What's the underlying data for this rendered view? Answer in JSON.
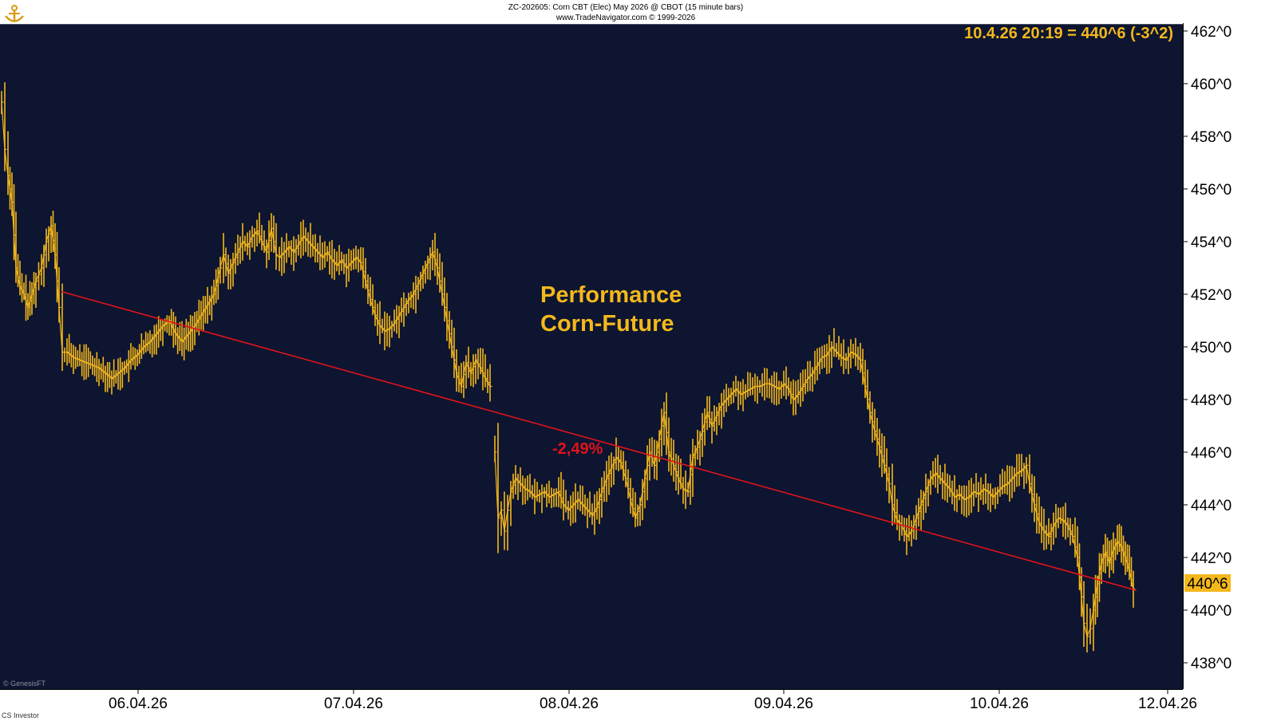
{
  "header": {
    "line1": "ZC-202605:  Corn CBT (Elec) May 2026 @ CBOT  (15 minute bars)",
    "line2": "www.TradeNavigator.com © 1999-2026"
  },
  "readout": "10.4.26 20:19 = 440^6 (-3^2)",
  "last_price_label": "440^6",
  "watermark": "© GenesisFT",
  "footer_left": "CS Investor",
  "annotation": {
    "line1": "Performance",
    "line2": "Corn-Future"
  },
  "trend_label": "-2,49%",
  "colors": {
    "background": "#0d1530",
    "bars": "#f4b81c",
    "trendline": "#e3121b",
    "annotation": "#f4b81c",
    "trend_label": "#e3121b",
    "price_box": "#f4b81c"
  },
  "chart_data": {
    "type": "line",
    "title": "Performance Corn-Future",
    "xlabel": "",
    "ylabel": "",
    "ylim": [
      437,
      462.3
    ],
    "xlim": [
      0,
      1482
    ],
    "y_tick_values": [
      438,
      440,
      442,
      444,
      446,
      448,
      450,
      452,
      454,
      456,
      458,
      460,
      462
    ],
    "y_tick_labels": [
      "438^0",
      "440^0",
      "442^0",
      "444^0",
      "446^0",
      "448^0",
      "450^0",
      "452^0",
      "454^0",
      "456^0",
      "458^0",
      "460^0",
      "462^0"
    ],
    "x_tick_positions": [
      173,
      443,
      713,
      982,
      1252,
      1463
    ],
    "x_tick_labels": [
      "06.04.26",
      "07.04.26",
      "08.04.26",
      "09.04.26",
      "10.04.26",
      "12.04.26"
    ],
    "grid": false,
    "series": [
      {
        "x": [
          2,
          6,
          10,
          15,
          20,
          25,
          30,
          35,
          40,
          45,
          52,
          58,
          64,
          69,
          74,
          78,
          84,
          92,
          100,
          108,
          116,
          124,
          132,
          140,
          148,
          156,
          164,
          172,
          180,
          188,
          196,
          204,
          212,
          220,
          228,
          236,
          244,
          252,
          260,
          268,
          276,
          280,
          286,
          292,
          298,
          304,
          310,
          316,
          322,
          328,
          334,
          340,
          346,
          350,
          356,
          362,
          368,
          374,
          380,
          386,
          392,
          398,
          404,
          410,
          416,
          422,
          428,
          434,
          440,
          446,
          452,
          458,
          464,
          470,
          476,
          482,
          488,
          494,
          500,
          506,
          512,
          518,
          524,
          530,
          536,
          542,
          548,
          554,
          560,
          566,
          572,
          578,
          584,
          590,
          596,
          602,
          608,
          614
        ],
        "values": [
          459.3,
          457.5,
          456.5,
          455.5,
          453,
          452.3,
          452,
          451.5,
          452,
          452.5,
          453,
          454,
          454.6,
          453.5,
          451.5,
          449.8,
          449.8,
          449.6,
          449.5,
          449.4,
          449.3,
          449.2,
          449.0,
          448.8,
          449.0,
          449.2,
          449.5,
          449.7,
          450.0,
          450.2,
          450.5,
          450.8,
          451.0,
          450.5,
          450.2,
          450.5,
          450.8,
          451.2,
          451.6,
          452.0,
          453.0,
          453.5,
          452.8,
          453.2,
          453.6,
          454.0,
          453.8,
          454.2,
          454.4,
          454.0,
          453.6,
          454.5,
          453.5,
          453.4,
          453.6,
          453.8,
          453.6,
          453.9,
          454.2,
          454.0,
          453.8,
          453.6,
          453.4,
          453.6,
          453.3,
          453.1,
          453.3,
          453.0,
          453.2,
          453.4,
          453.2,
          452.5,
          451.8,
          451.2,
          450.8,
          450.6,
          450.7,
          450.9,
          451.2,
          451.5,
          451.8,
          452.0,
          452.4,
          452.8,
          453.2,
          453.6,
          453.0,
          452.0,
          451.0,
          450.0,
          449.0,
          448.5,
          449.4,
          449.0,
          449.5,
          449.2,
          448.8,
          448.5
        ]
      },
      {
        "x": [
          620,
          624,
          628,
          632,
          636,
          640,
          646,
          652,
          658,
          664,
          670,
          676,
          682,
          688,
          694,
          700,
          706,
          712,
          718,
          724,
          730,
          736,
          742,
          748,
          754,
          760,
          766,
          772,
          778,
          784,
          790,
          796,
          802,
          808,
          814,
          820,
          826,
          832,
          838,
          844,
          850,
          856,
          862,
          868,
          874,
          880,
          886,
          892,
          898,
          904,
          910,
          916,
          922,
          928,
          934,
          940,
          946,
          952,
          958,
          964,
          970,
          976,
          982,
          988,
          994,
          1000,
          1006,
          1012,
          1018,
          1024,
          1030,
          1036,
          1042,
          1048,
          1054,
          1060,
          1066,
          1072,
          1078,
          1084,
          1090,
          1096,
          1102,
          1108,
          1114,
          1118,
          1124,
          1130,
          1136,
          1142,
          1148,
          1154,
          1160,
          1166,
          1172,
          1178,
          1184,
          1190,
          1196,
          1202,
          1208,
          1214,
          1220,
          1226,
          1232,
          1238,
          1244,
          1250,
          1256,
          1262,
          1268,
          1274,
          1280,
          1286,
          1290,
          1296,
          1302,
          1308,
          1314,
          1320,
          1326,
          1332,
          1338,
          1344,
          1350,
          1355,
          1358,
          1362,
          1366,
          1370,
          1375,
          1380,
          1385,
          1390,
          1395,
          1400,
          1405,
          1410,
          1415,
          1420
        ],
        "values": [
          446.0,
          443.5,
          443.8,
          443.0,
          443.8,
          444.5,
          445.0,
          444.8,
          444.6,
          444.5,
          444.3,
          444.4,
          444.5,
          444.3,
          444.4,
          444.5,
          444.0,
          443.8,
          444.0,
          444.2,
          444.0,
          443.8,
          443.6,
          443.9,
          444.5,
          445.0,
          445.4,
          445.8,
          445.6,
          445.0,
          444.2,
          443.5,
          444.0,
          445.0,
          446.0,
          445.5,
          446.5,
          447.5,
          446.0,
          445.5,
          445.0,
          444.6,
          444.5,
          445.8,
          446.2,
          446.8,
          447.5,
          447.0,
          447.4,
          447.8,
          448.0,
          448.2,
          448.4,
          448.2,
          448.3,
          448.4,
          448.5,
          448.5,
          448.6,
          448.6,
          448.5,
          448.4,
          448.6,
          448.4,
          448.0,
          448.2,
          448.5,
          448.8,
          449.0,
          449.3,
          449.6,
          449.7,
          450.0,
          449.8,
          449.6,
          449.5,
          449.8,
          449.7,
          449.5,
          448.5,
          447.5,
          446.8,
          446.2,
          445.5,
          444.8,
          444.0,
          443.4,
          443.2,
          442.8,
          443.0,
          443.5,
          444.0,
          444.5,
          445.0,
          445.2,
          445.0,
          444.8,
          444.6,
          444.3,
          444.4,
          444.2,
          444.3,
          444.5,
          444.4,
          444.6,
          444.5,
          444.3,
          444.5,
          444.7,
          444.8,
          445.0,
          445.2,
          445.3,
          445.5,
          444.8,
          444.0,
          443.3,
          443.0,
          442.8,
          443.2,
          443.5,
          443.4,
          443.2,
          442.8,
          442.0,
          440.5,
          439.5,
          439.0,
          439.3,
          440.0,
          441.0,
          441.8,
          442.2,
          441.8,
          442.3,
          442.6,
          442.4,
          442.0,
          441.5,
          440.8
        ]
      }
    ],
    "trendline": {
      "x": [
        77,
        1424
      ],
      "y": [
        452.1,
        440.75
      ]
    },
    "readout_value": "440^6"
  }
}
